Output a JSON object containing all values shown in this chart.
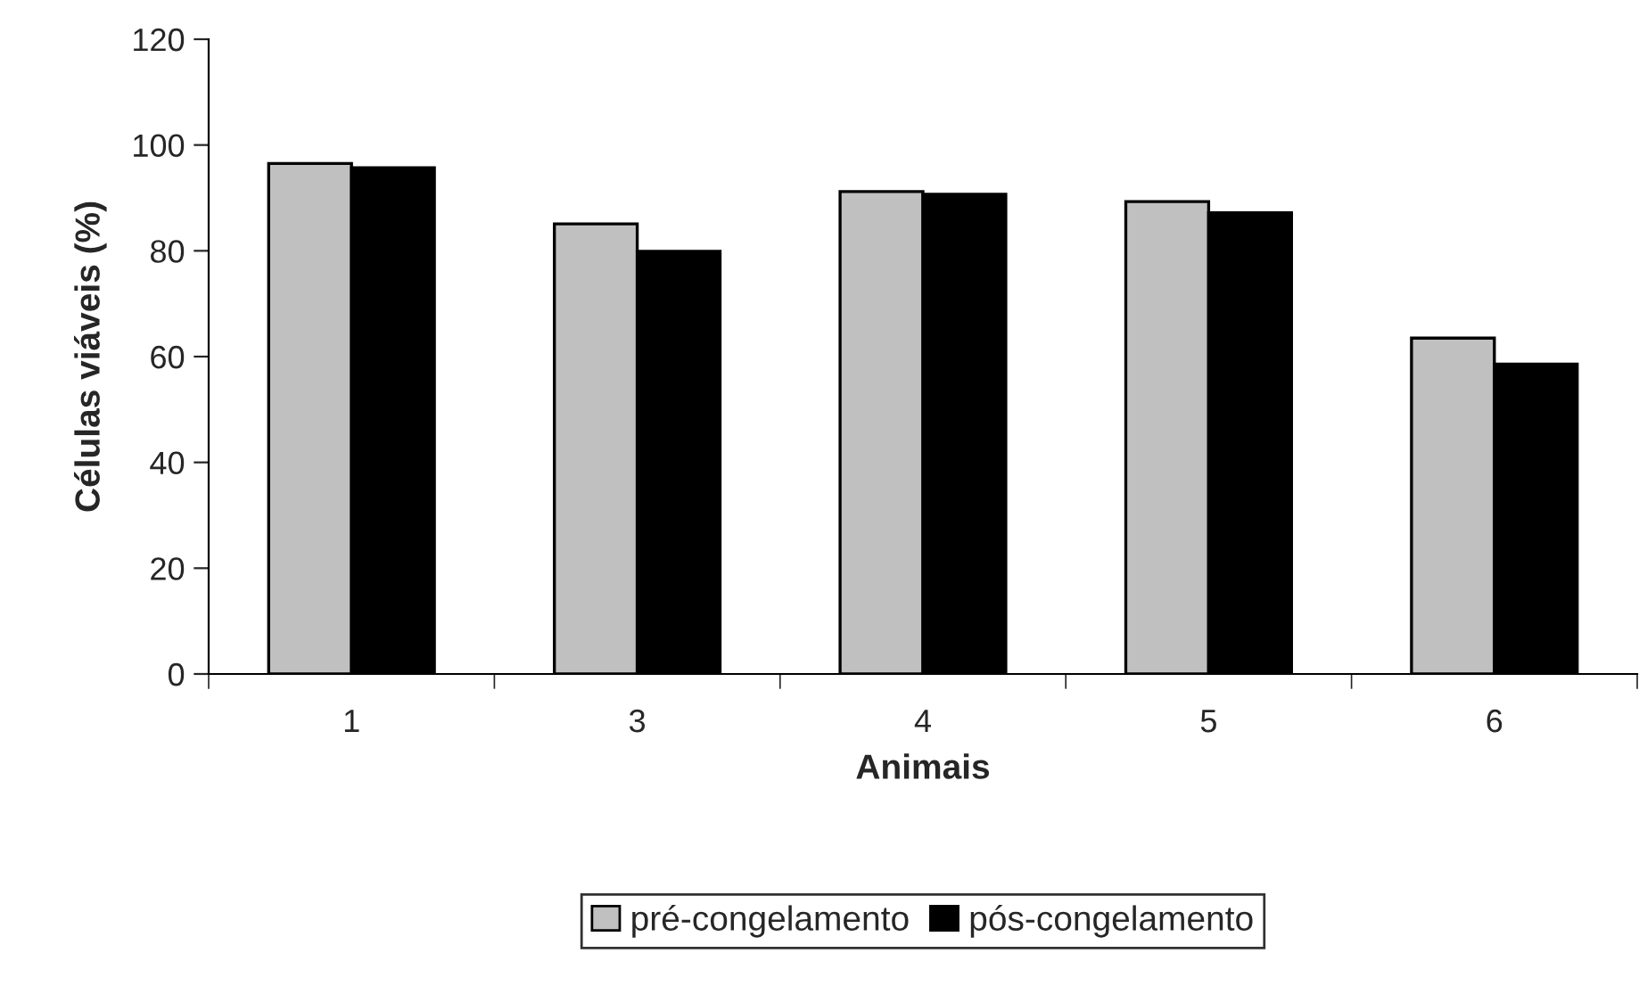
{
  "chart_data": {
    "type": "bar",
    "xlabel": "Animais",
    "ylabel": "Células viáveis (%)",
    "categories": [
      "1",
      "3",
      "4",
      "5",
      "6"
    ],
    "series": [
      {
        "name": "pré-congelamento",
        "color": "#c0c0c0",
        "values": [
          96.5,
          85.1,
          91.2,
          89.3,
          63.5
        ]
      },
      {
        "name": "pós-congelamento",
        "color": "#000000",
        "values": [
          95.7,
          79.9,
          90.7,
          87.2,
          58.6
        ]
      }
    ],
    "ylim": [
      0,
      120
    ],
    "yticks": [
      0,
      20,
      40,
      60,
      80,
      100,
      120
    ],
    "grid": false,
    "legend": "bottom"
  }
}
